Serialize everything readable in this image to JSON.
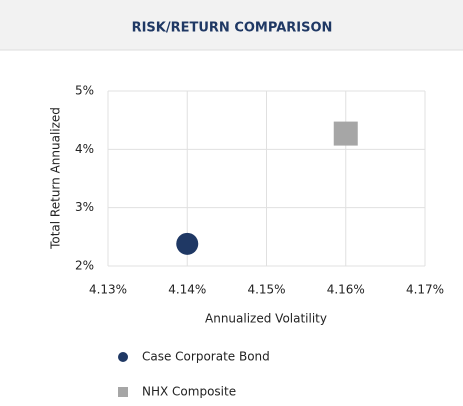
{
  "chart_data": {
    "type": "scatter",
    "title": "RISK/RETURN COMPARISON",
    "x_label": "Annualized Volatility",
    "y_label": "Total Return Annualized",
    "series": [
      {
        "name": "Case Corporate Bond",
        "color": "#1f3864",
        "marker": "circle",
        "x": [
          4.14
        ],
        "values": [
          2.38
        ]
      },
      {
        "name": "NHX Composite",
        "color": "#a6a6a6",
        "marker": "square",
        "x": [
          4.16
        ],
        "values": [
          4.27
        ]
      }
    ],
    "xlim": [
      4.13,
      4.17
    ],
    "xticks": [
      {
        "value": 4.13,
        "label": "4.13%"
      },
      {
        "value": 4.14,
        "label": "4.14%"
      },
      {
        "value": 4.15,
        "label": "4.15%"
      },
      {
        "value": 4.16,
        "label": "4.16%"
      },
      {
        "value": 4.17,
        "label": "4.17%"
      }
    ],
    "ylim": [
      2,
      5
    ],
    "yticks": [
      {
        "value": 2,
        "label": "2%"
      },
      {
        "value": 3,
        "label": "3%"
      },
      {
        "value": 4,
        "label": "4%"
      },
      {
        "value": 5,
        "label": "5%"
      }
    ],
    "grid": true
  }
}
